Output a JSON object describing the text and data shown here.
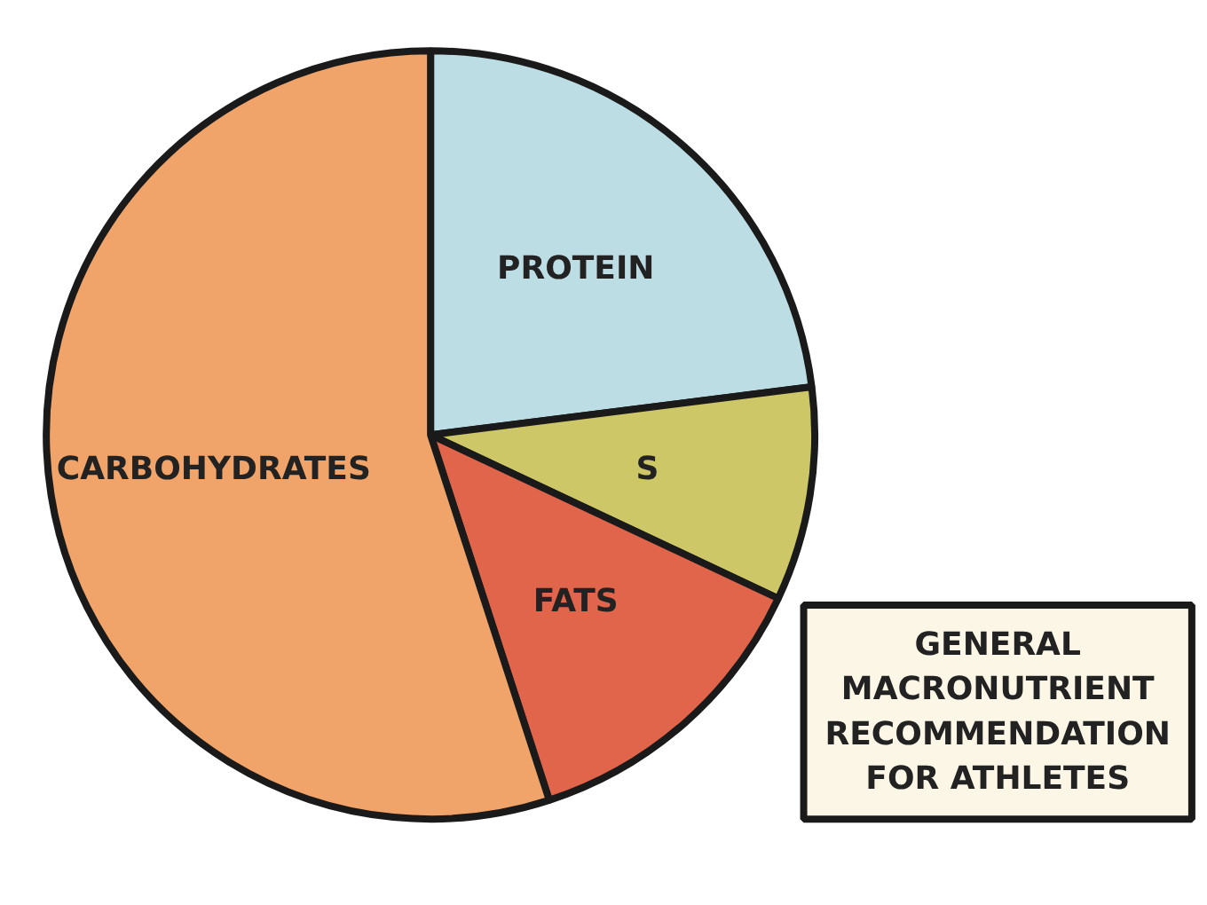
{
  "chart_data": {
    "type": "pie",
    "title": "GENERAL MACRONUTRIENT RECOMMENDATION FOR ATHLETES",
    "categories": [
      "PROTEIN",
      "S",
      "FATS",
      "CARBOHYDRATES"
    ],
    "values": [
      23,
      9,
      13,
      55
    ],
    "colors": [
      "#bcdde3",
      "#cdc767",
      "#e0654a",
      "#f0a46a"
    ]
  }
}
